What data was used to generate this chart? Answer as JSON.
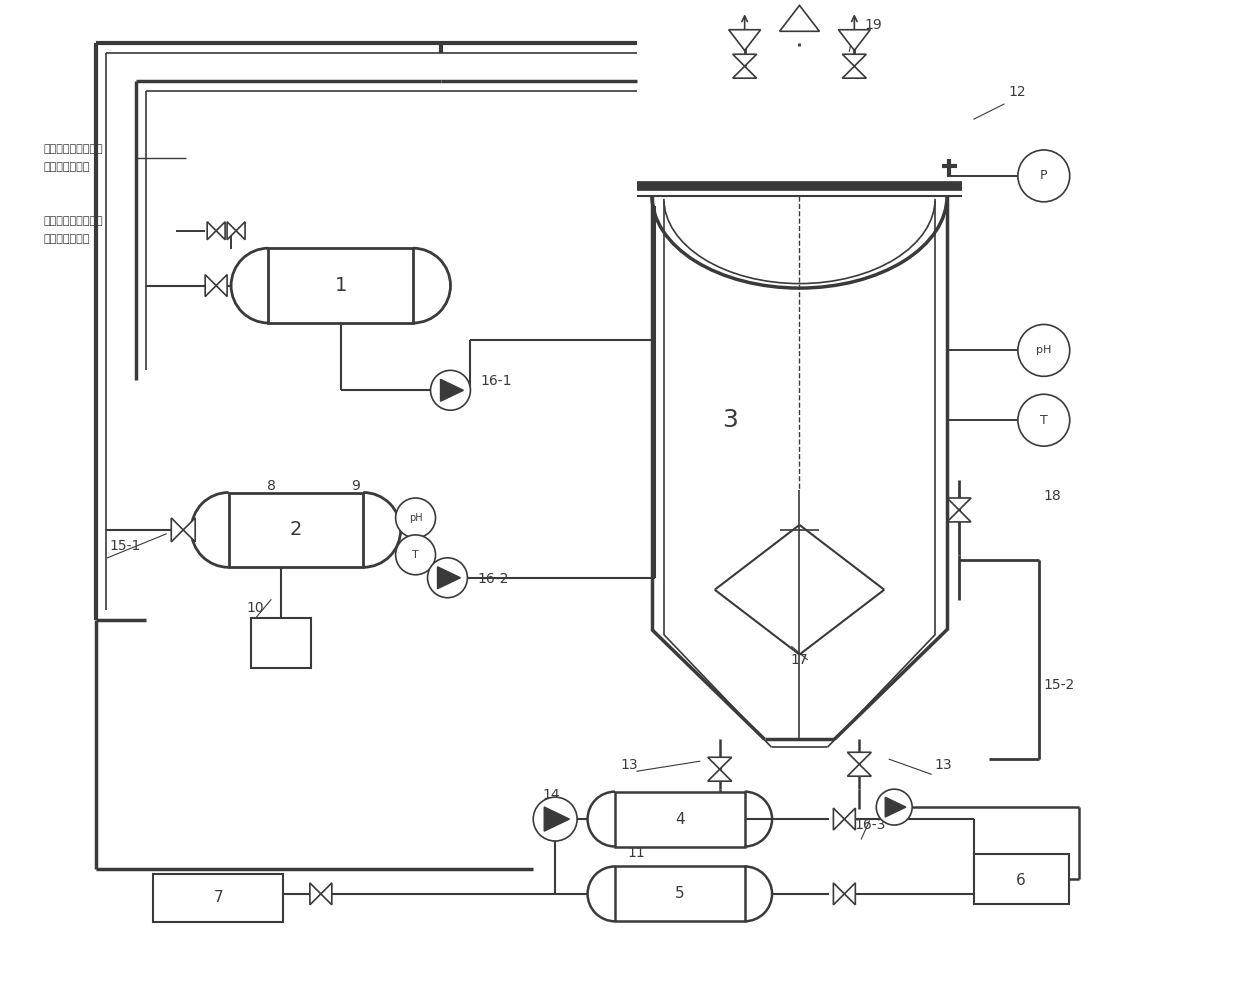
{
  "bg_color": "#ffffff",
  "lc": "#3a3a3a",
  "lw": 1.4,
  "fig_w": 12.4,
  "fig_h": 9.86,
  "chinese1a": "老化图滤水的老化中",
  "chinese1b": "老化中老化筛水",
  "chinese2a": "稳水分离器分离筛网",
  "chinese2b": "适少量水老化液"
}
